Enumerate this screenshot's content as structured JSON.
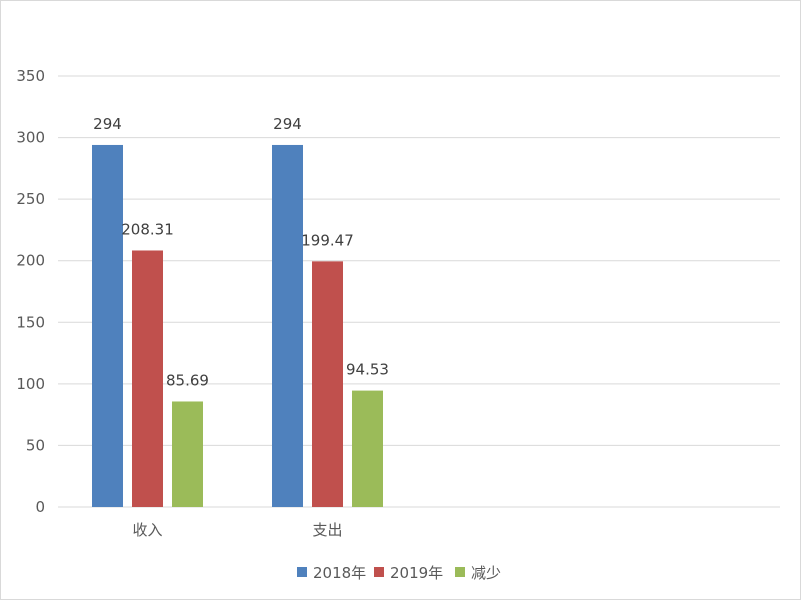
{
  "chart_data": {
    "type": "bar",
    "categories": [
      "收入",
      "支出"
    ],
    "series": [
      {
        "name": "2018年",
        "values": [
          294,
          294
        ],
        "color": "#4f81bd"
      },
      {
        "name": "2019年",
        "values": [
          208.31,
          199.47
        ],
        "color": "#c0504d"
      },
      {
        "name": "减少",
        "values": [
          85.69,
          94.53
        ],
        "color": "#9bbb59"
      }
    ],
    "data_labels": [
      [
        "294",
        "294"
      ],
      [
        "208.31",
        "199.47"
      ],
      [
        "85.69",
        "94.53"
      ]
    ],
    "yticks": [
      "0",
      "50",
      "100",
      "150",
      "200",
      "250",
      "300",
      "350"
    ],
    "ylim": [
      0,
      350
    ],
    "grid": true,
    "legend_position": "bottom",
    "title": "",
    "xlabel": "",
    "ylabel": ""
  }
}
